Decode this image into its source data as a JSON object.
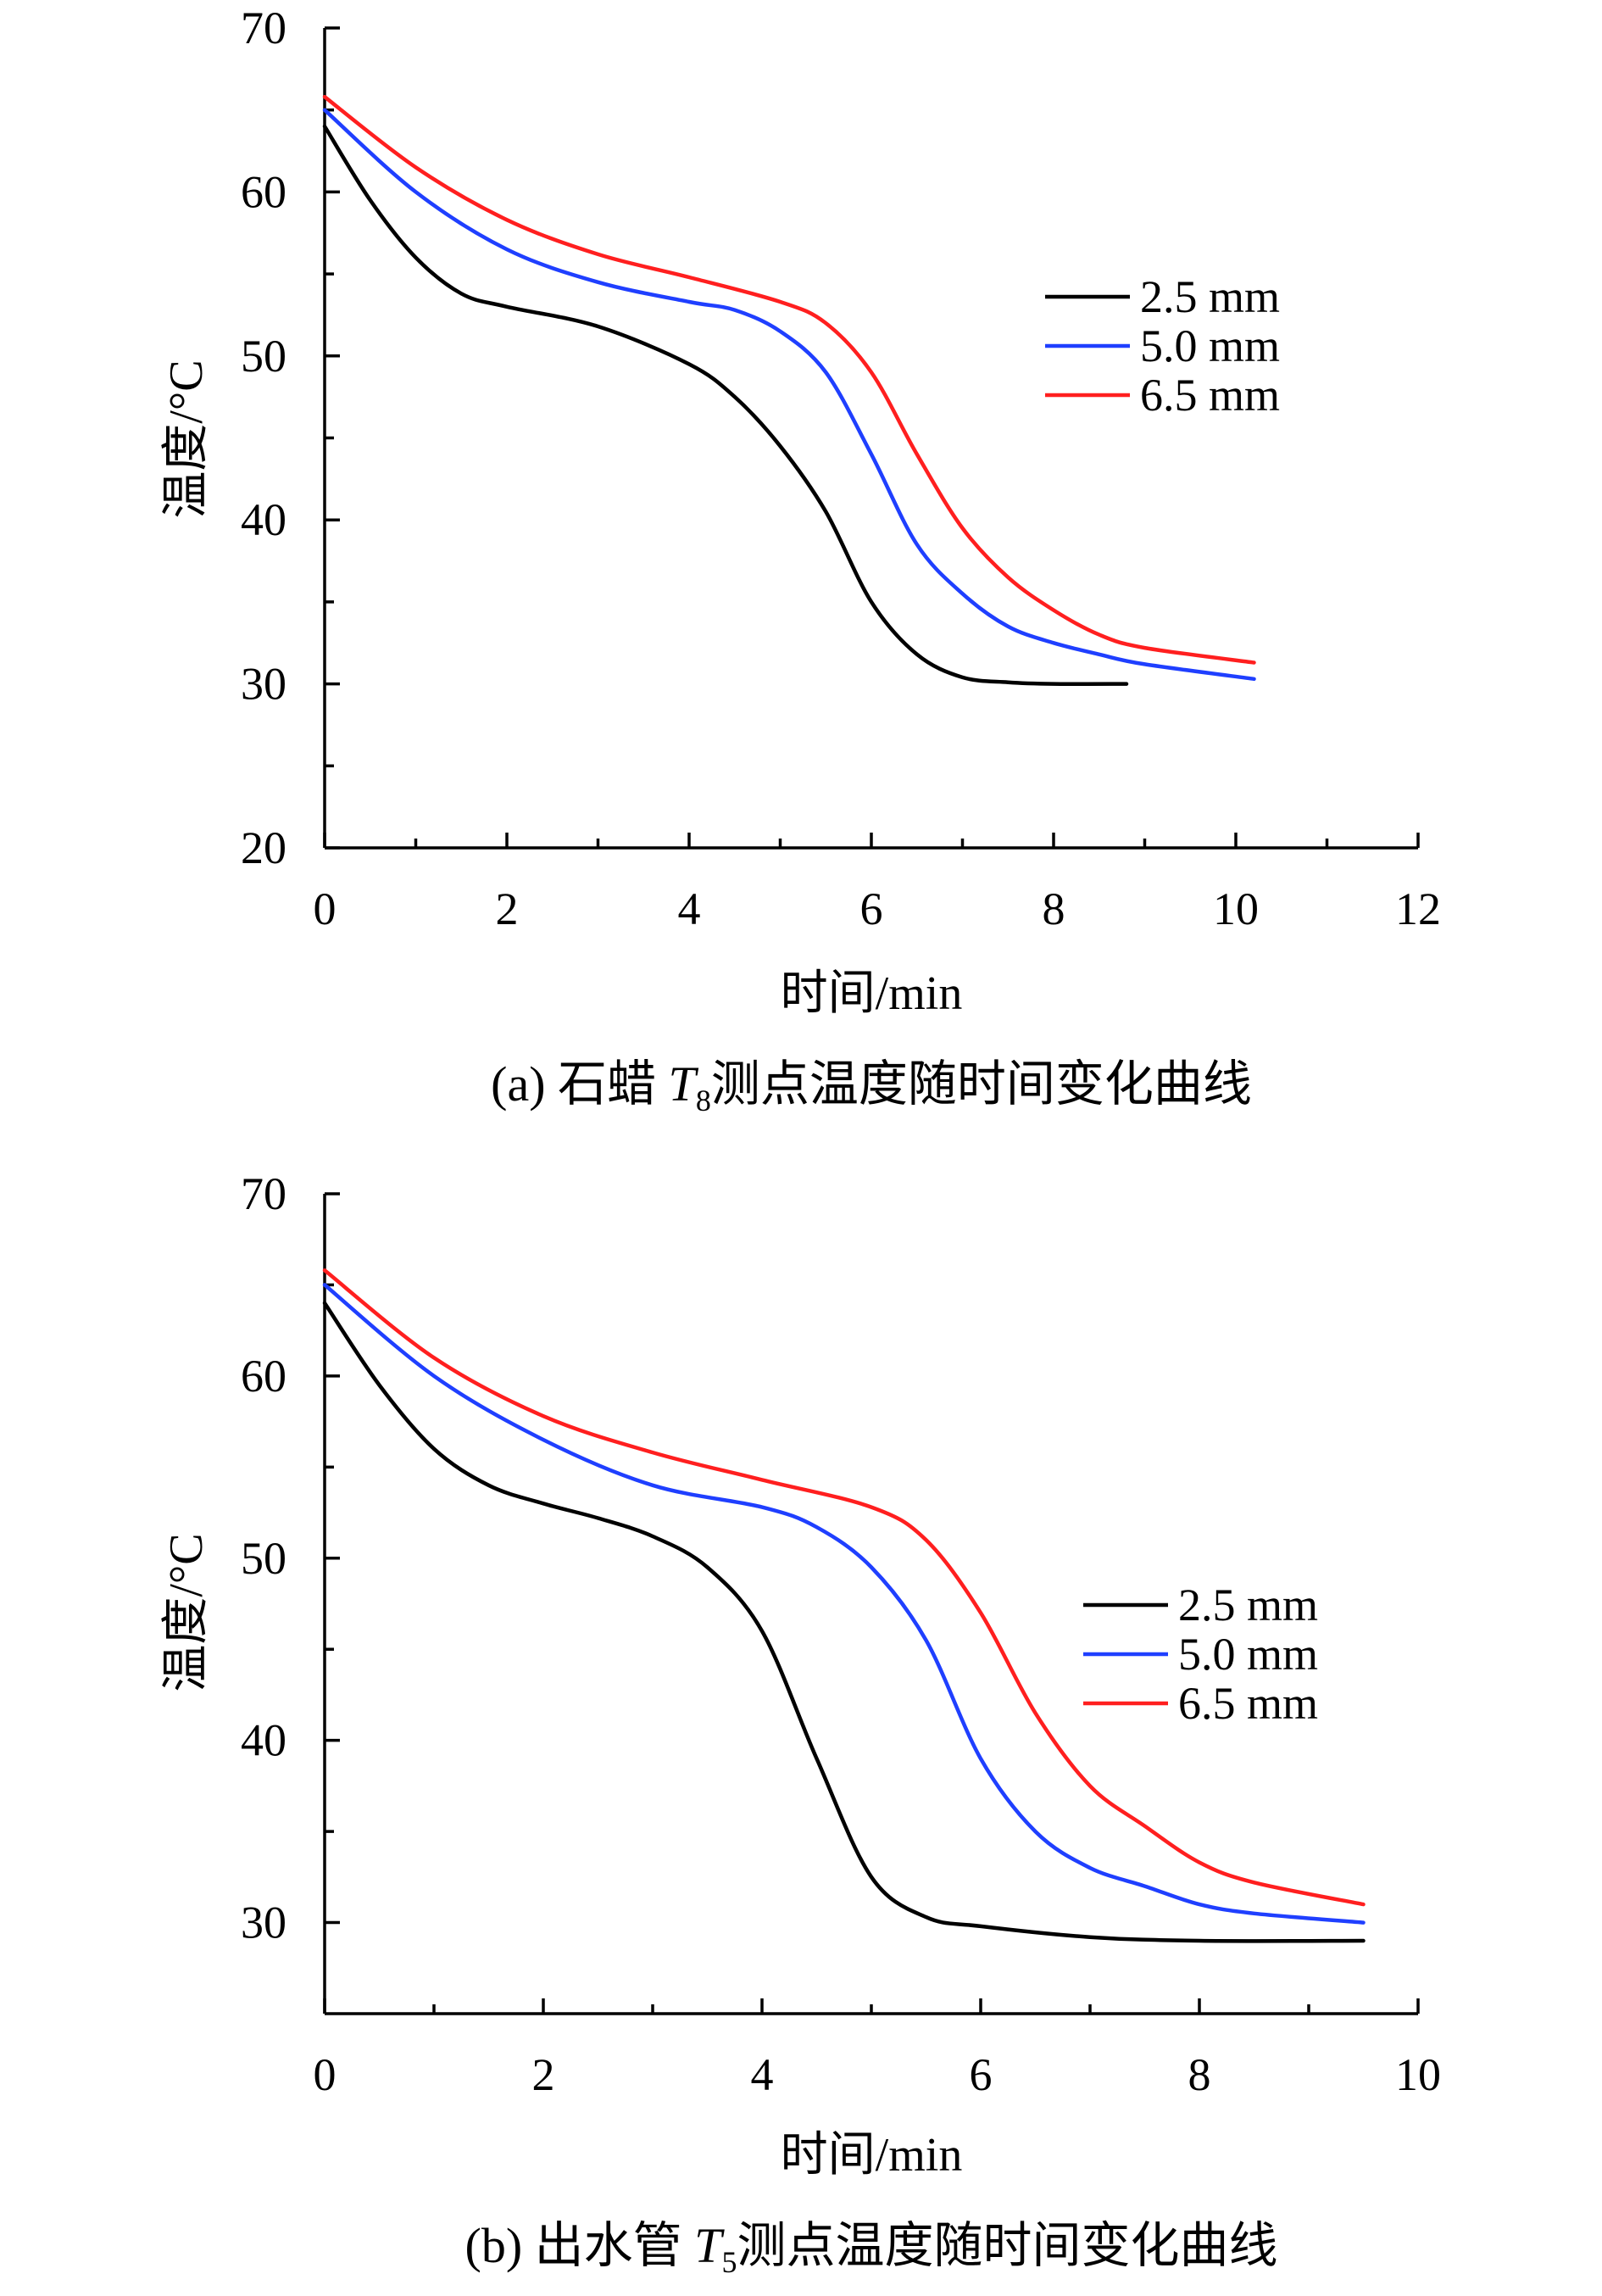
{
  "chart_data": [
    {
      "type": "line",
      "caption": {
        "prefix": "(a) 石蜡 ",
        "var": "T",
        "sub": "8",
        "suffix": "测点温度随时间变化曲线"
      },
      "xlabel": "时间/min",
      "ylabel": "温度/°C",
      "xlim": [
        0,
        12
      ],
      "ylim": [
        20,
        70
      ],
      "xticks": [
        0,
        2,
        4,
        6,
        8,
        10,
        12
      ],
      "yticks": [
        20,
        30,
        40,
        50,
        60,
        70
      ],
      "xminor": 1,
      "yminor": 5,
      "legend_position": "right",
      "series": [
        {
          "name": "2.5 mm",
          "color": "#000000",
          "x": [
            0,
            0.5,
            1,
            1.5,
            2,
            3,
            4,
            4.5,
            5,
            5.5,
            6,
            6.5,
            7,
            7.5,
            8,
            8.8
          ],
          "y": [
            64,
            59.5,
            56,
            53.8,
            53,
            51.8,
            49.5,
            47.5,
            44.5,
            40.5,
            35,
            31.8,
            30.4,
            30.1,
            30,
            30
          ]
        },
        {
          "name": "5.0 mm",
          "color": "#1f3fff",
          "x": [
            0,
            1,
            2,
            3,
            4,
            4.5,
            5,
            5.5,
            6,
            6.5,
            7,
            7.5,
            8,
            8.5,
            9,
            10.2
          ],
          "y": [
            65,
            60,
            56.5,
            54.5,
            53.3,
            52.8,
            51.5,
            49,
            44,
            38.5,
            35.5,
            33.5,
            32.5,
            31.8,
            31.2,
            30.3
          ]
        },
        {
          "name": "6.5 mm",
          "color": "#ff1f1f",
          "x": [
            0,
            1,
            2,
            3,
            4,
            5,
            5.5,
            6,
            6.5,
            7,
            7.5,
            8,
            8.5,
            9,
            10.2
          ],
          "y": [
            65.8,
            61.5,
            58.3,
            56.2,
            54.8,
            53.3,
            52,
            49,
            44,
            39.5,
            36.5,
            34.5,
            33,
            32.2,
            31.3
          ]
        }
      ]
    },
    {
      "type": "line",
      "caption": {
        "prefix": "(b) 出水管 ",
        "var": "T",
        "sub": "5",
        "suffix": "测点温度随时间变化曲线"
      },
      "xlabel": "时间/min",
      "ylabel": "温度/°C",
      "xlim": [
        0,
        10
      ],
      "ylim": [
        25,
        70
      ],
      "xticks": [
        0,
        2,
        4,
        6,
        8,
        10
      ],
      "yticks": [
        30,
        40,
        50,
        60,
        70
      ],
      "xminor": 1,
      "yminor": 5,
      "legend_position": "right",
      "series": [
        {
          "name": "2.5 mm",
          "color": "#000000",
          "x": [
            0,
            0.5,
            1,
            1.5,
            2,
            2.5,
            3,
            3.5,
            4,
            4.5,
            5,
            5.5,
            6,
            7,
            8,
            9.5
          ],
          "y": [
            64,
            59.5,
            56,
            54,
            53,
            52.2,
            51.2,
            49.5,
            46,
            39,
            32.5,
            30.3,
            29.8,
            29.2,
            29,
            29
          ]
        },
        {
          "name": "5.0 mm",
          "color": "#1f3fff",
          "x": [
            0,
            1,
            2,
            3,
            4,
            4.5,
            5,
            5.5,
            6,
            6.5,
            7,
            7.5,
            8,
            8.5,
            9.5
          ],
          "y": [
            65,
            60,
            56.5,
            54,
            52.8,
            51.7,
            49.5,
            45.5,
            39,
            35,
            33,
            32,
            31,
            30.5,
            30
          ]
        },
        {
          "name": "6.5 mm",
          "color": "#ff1f1f",
          "x": [
            0,
            1,
            2,
            3,
            4,
            5,
            5.5,
            6,
            6.5,
            7,
            7.5,
            8,
            8.5,
            9.5
          ],
          "y": [
            65.8,
            61,
            57.8,
            55.8,
            54.3,
            52.8,
            51,
            47,
            41.5,
            37.5,
            35.3,
            33.3,
            32.2,
            31
          ]
        }
      ]
    }
  ]
}
